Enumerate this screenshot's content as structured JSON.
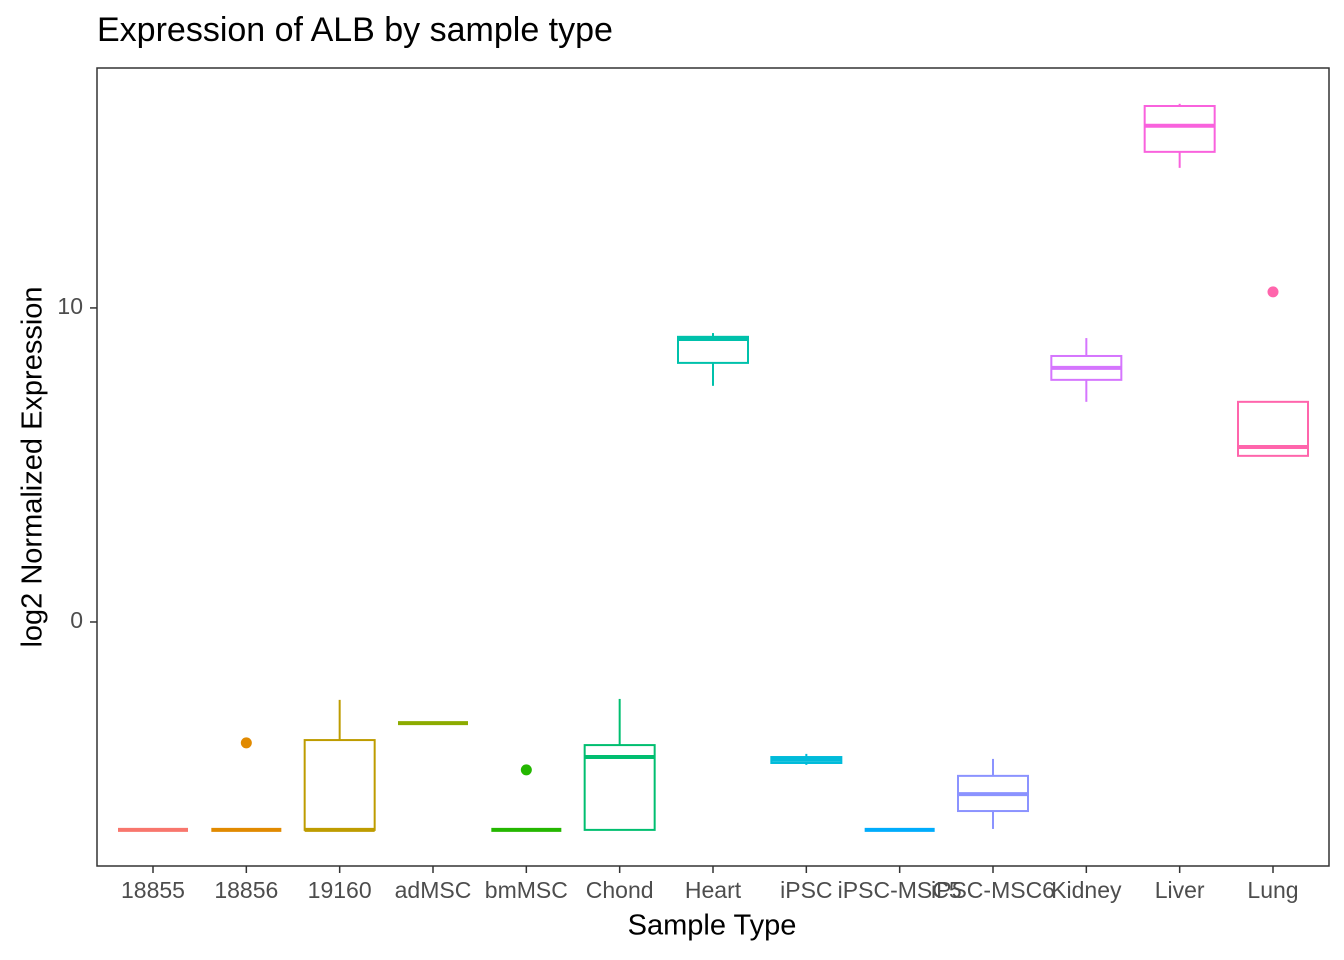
{
  "chart_data": {
    "type": "box",
    "title": "Expression of ALB by sample type",
    "x_label": "Sample Type",
    "y_label": "log2 Normalized Expression",
    "categories": [
      "18855",
      "18856",
      "19160",
      "adMSC",
      "bmMSC",
      "Chond",
      "Heart",
      "iPSC",
      "iPSC-MSC5",
      "iPSC-MSC6",
      "Kidney",
      "Liver",
      "Lung"
    ],
    "colors": [
      "#F8766D",
      "#E18A00",
      "#BE9C00",
      "#8CAB00",
      "#24B700",
      "#00BE70",
      "#00C1AB",
      "#00BBDA",
      "#00ACFC",
      "#8B93FF",
      "#D575FE",
      "#F962DD",
      "#FF65AC"
    ],
    "boxes": [
      {
        "min": -6.62,
        "q1": -6.62,
        "median": -6.62,
        "q3": -6.62,
        "max": -6.62
      },
      {
        "min": -6.62,
        "q1": -6.62,
        "median": -6.62,
        "q3": -6.62,
        "max": -6.62,
        "outliers": [
          -3.85
        ]
      },
      {
        "min": -6.62,
        "q1": -6.62,
        "median": -6.62,
        "q3": -3.76,
        "max": -2.48
      },
      {
        "min": -3.22,
        "q1": -3.22,
        "median": -3.22,
        "q3": -3.22,
        "max": -3.22
      },
      {
        "min": -6.62,
        "q1": -6.62,
        "median": -6.62,
        "q3": -6.62,
        "max": -6.62,
        "outliers": [
          -4.71
        ]
      },
      {
        "min": -6.62,
        "q1": -6.62,
        "median": -4.3,
        "q3": -3.92,
        "max": -2.45
      },
      {
        "min": 7.52,
        "q1": 8.25,
        "median": 9.01,
        "q3": 9.08,
        "max": 9.2
      },
      {
        "min": -4.55,
        "q1": -4.49,
        "median": -4.39,
        "q3": -4.3,
        "max": -4.2
      },
      {
        "min": -6.62,
        "q1": -6.62,
        "median": -6.62,
        "q3": -6.62,
        "max": -6.62
      },
      {
        "min": -6.59,
        "q1": -6.02,
        "median": -5.48,
        "q3": -4.9,
        "max": -4.36
      },
      {
        "min": 7.01,
        "q1": 7.71,
        "median": 8.09,
        "q3": 8.47,
        "max": 9.04
      },
      {
        "min": 14.46,
        "q1": 14.97,
        "median": 15.8,
        "q3": 16.43,
        "max": 16.5
      },
      {
        "min": 5.29,
        "q1": 5.29,
        "median": 5.57,
        "q3": 7.01,
        "max": 7.01,
        "outliers": [
          10.51
        ]
      }
    ],
    "ylim": [
      -7.77,
      17.64
    ],
    "yticks": [
      0,
      10
    ],
    "grid": false
  }
}
